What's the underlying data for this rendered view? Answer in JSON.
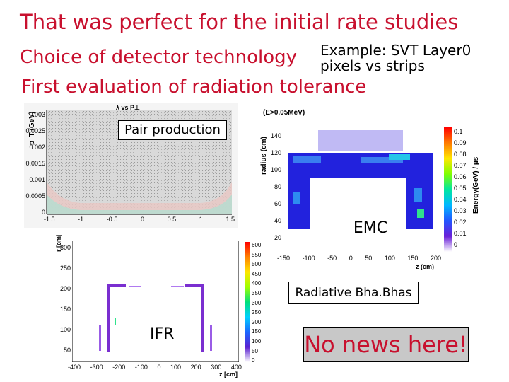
{
  "slide": {
    "title": "That was perfect for the initial rate studies",
    "line1": "Choice of detector technology",
    "line2": "First evaluation of radiation tolerance",
    "example_line1": "Example: SVT Layer0",
    "example_line2": "pixels vs strips"
  },
  "labels": {
    "pair_production": "Pair production",
    "emc": "EMC",
    "radiative_bhabhas": "Radiative Bha.Bhas",
    "ifr": "IFR",
    "no_news": "No news here!"
  },
  "plot_pair": {
    "title": "λ vs P⊥",
    "ylabel": "p_T (GeV)",
    "yticks": [
      "0.003",
      "0.0025",
      "0.002",
      "0.0015",
      "0.001",
      "0.0005",
      "0"
    ],
    "xticks": [
      "-1.5",
      "-1",
      "-0.5",
      "0",
      "0.5",
      "1",
      "1.5"
    ]
  },
  "plot_emc": {
    "header": "(E>0.05MeV)",
    "ylabel": "radius (cm)",
    "xlabel": "z (cm)",
    "yticks": [
      "140",
      "120",
      "100",
      "80",
      "60",
      "40",
      "20"
    ],
    "xticks": [
      "-150",
      "-100",
      "-50",
      "0",
      "50",
      "100",
      "150",
      "200"
    ],
    "colorbar_label": "Energy(GeV) / µs",
    "colorbar_ticks": [
      "0.1",
      "0.09",
      "0.08",
      "0.07",
      "0.06",
      "0.05",
      "0.04",
      "0.03",
      "0.02",
      "0.01",
      "0"
    ]
  },
  "plot_ifr": {
    "yunit": "r [cm]",
    "xlabel": "z [cm]",
    "yticks": [
      "300",
      "250",
      "200",
      "150",
      "100",
      "50"
    ],
    "xticks": [
      "-400",
      "-300",
      "-200",
      "-100",
      "0",
      "100",
      "200",
      "300",
      "400"
    ],
    "colorbar_ticks": [
      "600",
      "550",
      "500",
      "450",
      "400",
      "350",
      "300",
      "250",
      "200",
      "150",
      "100",
      "50",
      "0"
    ]
  },
  "colors": {
    "title_red": "#c8102e",
    "emc_blue": "#2222dd",
    "ifr_purple": "#7a2fd0"
  }
}
